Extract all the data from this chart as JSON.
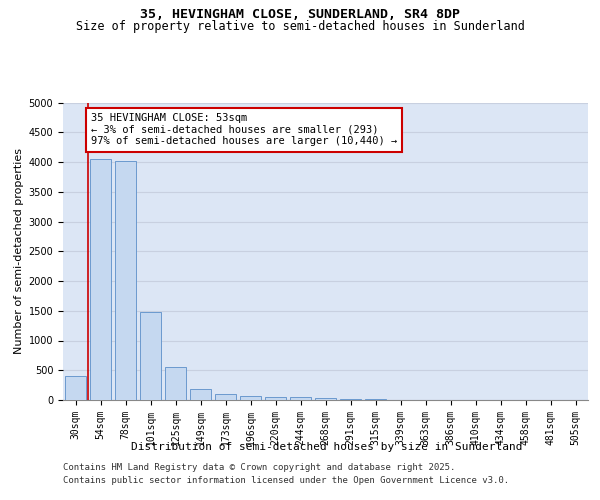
{
  "title1": "35, HEVINGHAM CLOSE, SUNDERLAND, SR4 8DP",
  "title2": "Size of property relative to semi-detached houses in Sunderland",
  "xlabel": "Distribution of semi-detached houses by size in Sunderland",
  "ylabel": "Number of semi-detached properties",
  "categories": [
    "30sqm",
    "54sqm",
    "78sqm",
    "101sqm",
    "125sqm",
    "149sqm",
    "173sqm",
    "196sqm",
    "220sqm",
    "244sqm",
    "268sqm",
    "291sqm",
    "315sqm",
    "339sqm",
    "363sqm",
    "386sqm",
    "410sqm",
    "434sqm",
    "458sqm",
    "481sqm",
    "505sqm"
  ],
  "values": [
    400,
    4050,
    4020,
    1480,
    555,
    185,
    95,
    70,
    55,
    45,
    35,
    20,
    10,
    5,
    3,
    2,
    1,
    0,
    0,
    0,
    0
  ],
  "bar_color": "#c5d8f0",
  "bar_edge_color": "#5b8fc9",
  "bar_width": 0.85,
  "vline_x": 0.48,
  "vline_color": "#cc0000",
  "annotation_text": "35 HEVINGHAM CLOSE: 53sqm\n← 3% of semi-detached houses are smaller (293)\n97% of semi-detached houses are larger (10,440) →",
  "annotation_box_color": "#ffffff",
  "annotation_box_edge": "#cc0000",
  "ylim": [
    0,
    5000
  ],
  "yticks": [
    0,
    500,
    1000,
    1500,
    2000,
    2500,
    3000,
    3500,
    4000,
    4500,
    5000
  ],
  "grid_color": "#c8d0e0",
  "bg_color": "#dce6f5",
  "footer1": "Contains HM Land Registry data © Crown copyright and database right 2025.",
  "footer2": "Contains public sector information licensed under the Open Government Licence v3.0.",
  "title_fontsize": 9.5,
  "subtitle_fontsize": 8.5,
  "axis_label_fontsize": 8,
  "tick_fontsize": 7,
  "annotation_fontsize": 7.5,
  "footer_fontsize": 6.5
}
